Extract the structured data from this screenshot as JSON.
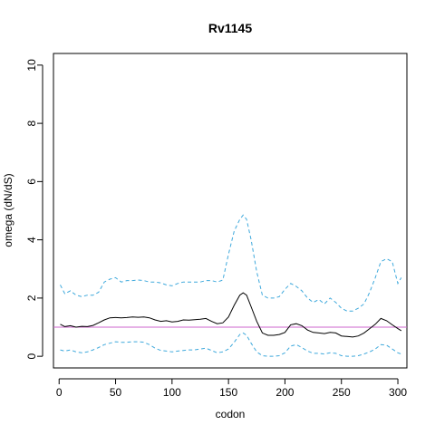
{
  "chart_data": {
    "type": "line",
    "title": "Rv1145",
    "xlabel": "codon",
    "ylabel": "omega (dN/dS)",
    "xlim": [
      -5,
      308
    ],
    "ylim": [
      -0.4,
      10.4
    ],
    "xticks": [
      0,
      50,
      100,
      150,
      200,
      250,
      300
    ],
    "yticks": [
      0,
      2,
      4,
      6,
      8,
      10
    ],
    "grid": false,
    "reference_line": {
      "y": 1,
      "color": "#cc66cc"
    },
    "series": [
      {
        "role": "estimate",
        "color": "#000000",
        "style": "solid",
        "x": [
          1,
          5,
          10,
          15,
          20,
          25,
          30,
          35,
          40,
          45,
          50,
          55,
          60,
          65,
          70,
          75,
          80,
          85,
          90,
          95,
          100,
          105,
          110,
          115,
          120,
          125,
          130,
          135,
          140,
          145,
          150,
          155,
          160,
          163,
          166,
          170,
          175,
          180,
          185,
          190,
          195,
          200,
          205,
          210,
          215,
          220,
          225,
          230,
          235,
          240,
          245,
          250,
          255,
          260,
          265,
          270,
          275,
          280,
          285,
          290,
          295,
          300,
          303
        ],
        "y": [
          1.1,
          1.02,
          1.05,
          1.0,
          1.03,
          1.02,
          1.06,
          1.15,
          1.25,
          1.32,
          1.33,
          1.32,
          1.33,
          1.35,
          1.34,
          1.35,
          1.32,
          1.25,
          1.2,
          1.22,
          1.18,
          1.2,
          1.25,
          1.24,
          1.26,
          1.27,
          1.3,
          1.2,
          1.12,
          1.15,
          1.35,
          1.75,
          2.1,
          2.18,
          2.1,
          1.7,
          1.2,
          0.8,
          0.72,
          0.72,
          0.75,
          0.82,
          1.08,
          1.12,
          1.05,
          0.9,
          0.82,
          0.8,
          0.78,
          0.82,
          0.8,
          0.7,
          0.68,
          0.66,
          0.7,
          0.8,
          0.95,
          1.1,
          1.3,
          1.22,
          1.08,
          0.95,
          0.88
        ]
      },
      {
        "role": "upper bound",
        "color": "#3fa9dc",
        "style": "dashed",
        "x": [
          1,
          5,
          10,
          15,
          20,
          25,
          30,
          35,
          40,
          45,
          50,
          55,
          60,
          65,
          70,
          75,
          80,
          85,
          90,
          95,
          100,
          105,
          110,
          115,
          120,
          125,
          130,
          135,
          140,
          145,
          150,
          155,
          160,
          163,
          166,
          170,
          175,
          180,
          185,
          190,
          195,
          200,
          205,
          210,
          215,
          220,
          225,
          230,
          235,
          240,
          245,
          250,
          255,
          260,
          265,
          270,
          275,
          280,
          285,
          290,
          295,
          300,
          303
        ],
        "y": [
          2.45,
          2.15,
          2.25,
          2.1,
          2.05,
          2.1,
          2.1,
          2.2,
          2.55,
          2.65,
          2.7,
          2.55,
          2.6,
          2.6,
          2.62,
          2.6,
          2.55,
          2.55,
          2.52,
          2.45,
          2.42,
          2.5,
          2.55,
          2.55,
          2.55,
          2.55,
          2.6,
          2.6,
          2.55,
          2.62,
          3.5,
          4.3,
          4.7,
          4.85,
          4.7,
          4.0,
          2.9,
          2.1,
          2.0,
          2.0,
          2.05,
          2.3,
          2.5,
          2.4,
          2.25,
          2.0,
          1.85,
          1.95,
          1.8,
          2.0,
          1.85,
          1.65,
          1.55,
          1.55,
          1.65,
          1.8,
          2.2,
          2.7,
          3.25,
          3.35,
          3.25,
          2.5,
          2.7
        ]
      },
      {
        "role": "lower bound",
        "color": "#3fa9dc",
        "style": "dashed",
        "x": [
          1,
          5,
          10,
          15,
          20,
          25,
          30,
          35,
          40,
          45,
          50,
          55,
          60,
          65,
          70,
          75,
          80,
          85,
          90,
          95,
          100,
          105,
          110,
          115,
          120,
          125,
          130,
          135,
          140,
          145,
          150,
          155,
          160,
          163,
          166,
          170,
          175,
          180,
          185,
          190,
          195,
          200,
          205,
          210,
          215,
          220,
          225,
          230,
          235,
          240,
          245,
          250,
          255,
          260,
          265,
          270,
          275,
          280,
          285,
          290,
          295,
          300,
          303
        ],
        "y": [
          0.22,
          0.18,
          0.22,
          0.15,
          0.12,
          0.15,
          0.22,
          0.3,
          0.4,
          0.45,
          0.5,
          0.48,
          0.48,
          0.5,
          0.5,
          0.48,
          0.4,
          0.28,
          0.2,
          0.18,
          0.15,
          0.18,
          0.2,
          0.22,
          0.22,
          0.25,
          0.28,
          0.2,
          0.12,
          0.15,
          0.25,
          0.48,
          0.75,
          0.8,
          0.72,
          0.45,
          0.15,
          0.02,
          0.0,
          0.0,
          0.02,
          0.12,
          0.35,
          0.4,
          0.3,
          0.18,
          0.1,
          0.1,
          0.08,
          0.12,
          0.1,
          0.02,
          0.0,
          0.0,
          0.02,
          0.08,
          0.15,
          0.25,
          0.4,
          0.38,
          0.25,
          0.12,
          0.08
        ]
      }
    ]
  }
}
